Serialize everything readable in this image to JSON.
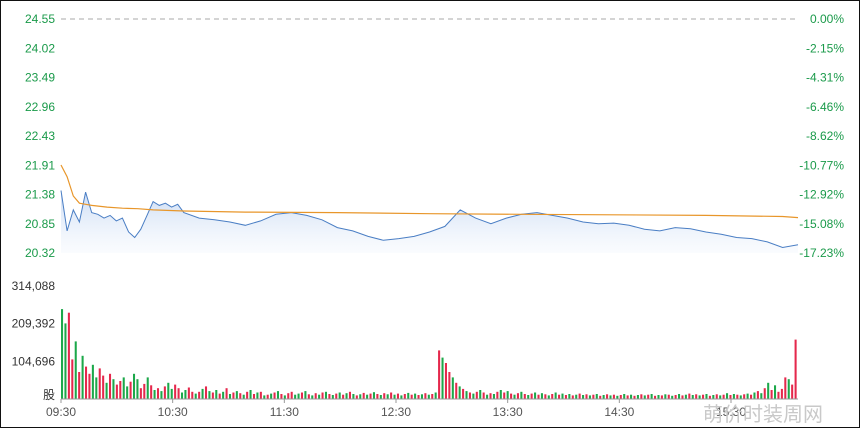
{
  "chart_data": [
    {
      "type": "line",
      "ylim": [
        20.32,
        24.55
      ],
      "y_ticks": [
        "24.55",
        "24.02",
        "23.49",
        "22.96",
        "22.43",
        "21.91",
        "21.38",
        "20.85",
        "20.32"
      ],
      "y2_ticks": [
        "0.00%",
        "-2.15%",
        "-4.31%",
        "-6.46%",
        "-8.62%",
        "-10.77%",
        "-12.92%",
        "-15.08%",
        "-17.23%"
      ],
      "reference_price": 24.55,
      "colors": {
        "price": "#4a7ec4",
        "avg": "#e8962a",
        "fill_top": "#b9cff0",
        "ref_line": "#aaaaaa",
        "axis_text": "#1a9a4a"
      },
      "series": [
        {
          "role": "price",
          "x": [
            0,
            2,
            4,
            6,
            8,
            10,
            12,
            14,
            16,
            18,
            20,
            22,
            24,
            26,
            28,
            30,
            32,
            34,
            36,
            38,
            40,
            45,
            50,
            55,
            60,
            65,
            70,
            75,
            80,
            85,
            90,
            95,
            100,
            105,
            110,
            115,
            120,
            125,
            130,
            135,
            140,
            145,
            150,
            155,
            160,
            165,
            170,
            175,
            180,
            185,
            190,
            195,
            200,
            205,
            210,
            215,
            220,
            225,
            230,
            235,
            240
          ],
          "y": [
            21.45,
            20.72,
            21.1,
            20.88,
            21.42,
            21.05,
            21.02,
            20.95,
            21.0,
            20.9,
            20.95,
            20.7,
            20.6,
            20.75,
            21.0,
            21.25,
            21.18,
            21.22,
            21.15,
            21.2,
            21.05,
            20.95,
            20.92,
            20.88,
            20.82,
            20.9,
            21.02,
            21.05,
            21.0,
            20.92,
            20.78,
            20.72,
            20.62,
            20.55,
            20.58,
            20.62,
            20.7,
            20.8,
            21.1,
            20.95,
            20.85,
            20.95,
            21.02,
            21.05,
            21.0,
            20.95,
            20.88,
            20.85,
            20.86,
            20.82,
            20.75,
            20.72,
            20.78,
            20.76,
            20.7,
            20.66,
            20.6,
            20.58,
            20.52,
            20.42,
            20.47
          ]
        },
        {
          "role": "avg",
          "x": [
            0,
            2,
            4,
            6,
            8,
            10,
            15,
            20,
            25,
            30,
            40,
            60,
            90,
            120,
            150,
            180,
            210,
            235,
            240
          ],
          "y": [
            21.91,
            21.7,
            21.35,
            21.22,
            21.2,
            21.18,
            21.15,
            21.13,
            21.12,
            21.1,
            21.08,
            21.06,
            21.05,
            21.03,
            21.02,
            21.01,
            21.0,
            20.98,
            20.96
          ]
        }
      ]
    },
    {
      "type": "bar",
      "y_ticks": [
        "314,088",
        "209,392",
        "104,696",
        "股"
      ],
      "ylim": [
        0,
        314088
      ],
      "colors": {
        "up": "#e5284c",
        "down": "#1ca84a"
      },
      "bars": [
        [
          250000,
          "down"
        ],
        [
          210000,
          "down"
        ],
        [
          240000,
          "up"
        ],
        [
          110000,
          "up"
        ],
        [
          160000,
          "down"
        ],
        [
          75000,
          "up"
        ],
        [
          120000,
          "down"
        ],
        [
          90000,
          "up"
        ],
        [
          70000,
          "up"
        ],
        [
          95000,
          "down"
        ],
        [
          60000,
          "down"
        ],
        [
          85000,
          "up"
        ],
        [
          65000,
          "up"
        ],
        [
          45000,
          "down"
        ],
        [
          70000,
          "up"
        ],
        [
          55000,
          "down"
        ],
        [
          40000,
          "up"
        ],
        [
          50000,
          "up"
        ],
        [
          60000,
          "down"
        ],
        [
          35000,
          "down"
        ],
        [
          48000,
          "up"
        ],
        [
          70000,
          "down"
        ],
        [
          55000,
          "down"
        ],
        [
          30000,
          "up"
        ],
        [
          42000,
          "up"
        ],
        [
          60000,
          "down"
        ],
        [
          38000,
          "up"
        ],
        [
          25000,
          "down"
        ],
        [
          30000,
          "up"
        ],
        [
          22000,
          "down"
        ],
        [
          35000,
          "up"
        ],
        [
          45000,
          "down"
        ],
        [
          28000,
          "down"
        ],
        [
          40000,
          "up"
        ],
        [
          30000,
          "up"
        ],
        [
          18000,
          "down"
        ],
        [
          25000,
          "down"
        ],
        [
          32000,
          "up"
        ],
        [
          20000,
          "up"
        ],
        [
          15000,
          "down"
        ],
        [
          20000,
          "up"
        ],
        [
          28000,
          "down"
        ],
        [
          35000,
          "up"
        ],
        [
          22000,
          "down"
        ],
        [
          18000,
          "up"
        ],
        [
          25000,
          "down"
        ],
        [
          15000,
          "up"
        ],
        [
          20000,
          "down"
        ],
        [
          30000,
          "up"
        ],
        [
          14000,
          "down"
        ],
        [
          18000,
          "up"
        ],
        [
          22000,
          "down"
        ],
        [
          16000,
          "up"
        ],
        [
          12000,
          "down"
        ],
        [
          20000,
          "up"
        ],
        [
          25000,
          "down"
        ],
        [
          14000,
          "up"
        ],
        [
          18000,
          "down"
        ],
        [
          20000,
          "up"
        ],
        [
          10000,
          "down"
        ],
        [
          12000,
          "up"
        ],
        [
          15000,
          "down"
        ],
        [
          18000,
          "up"
        ],
        [
          22000,
          "down"
        ],
        [
          14000,
          "up"
        ],
        [
          10000,
          "down"
        ],
        [
          16000,
          "up"
        ],
        [
          20000,
          "up"
        ],
        [
          12000,
          "down"
        ],
        [
          15000,
          "down"
        ],
        [
          18000,
          "up"
        ],
        [
          22000,
          "down"
        ],
        [
          13000,
          "up"
        ],
        [
          10000,
          "down"
        ],
        [
          16000,
          "up"
        ],
        [
          12000,
          "down"
        ],
        [
          18000,
          "up"
        ],
        [
          20000,
          "down"
        ],
        [
          14000,
          "up"
        ],
        [
          11000,
          "down"
        ],
        [
          15000,
          "up"
        ],
        [
          18000,
          "down"
        ],
        [
          12000,
          "up"
        ],
        [
          16000,
          "down"
        ],
        [
          20000,
          "up"
        ],
        [
          14000,
          "down"
        ],
        [
          10000,
          "up"
        ],
        [
          13000,
          "down"
        ],
        [
          17000,
          "up"
        ],
        [
          12000,
          "down"
        ],
        [
          15000,
          "up"
        ],
        [
          19000,
          "down"
        ],
        [
          14000,
          "up"
        ],
        [
          11000,
          "down"
        ],
        [
          16000,
          "up"
        ],
        [
          13000,
          "down"
        ],
        [
          18000,
          "up"
        ],
        [
          12000,
          "down"
        ],
        [
          15000,
          "up"
        ],
        [
          10000,
          "down"
        ],
        [
          14000,
          "up"
        ],
        [
          17000,
          "down"
        ],
        [
          12000,
          "up"
        ],
        [
          15000,
          "down"
        ],
        [
          11000,
          "up"
        ],
        [
          13000,
          "down"
        ],
        [
          16000,
          "up"
        ],
        [
          12000,
          "down"
        ],
        [
          14000,
          "up"
        ],
        [
          18000,
          "down"
        ],
        [
          135000,
          "up"
        ],
        [
          115000,
          "down"
        ],
        [
          100000,
          "up"
        ],
        [
          75000,
          "up"
        ],
        [
          60000,
          "down"
        ],
        [
          45000,
          "up"
        ],
        [
          35000,
          "down"
        ],
        [
          28000,
          "up"
        ],
        [
          22000,
          "down"
        ],
        [
          18000,
          "up"
        ],
        [
          15000,
          "down"
        ],
        [
          20000,
          "up"
        ],
        [
          25000,
          "down"
        ],
        [
          18000,
          "up"
        ],
        [
          12000,
          "down"
        ],
        [
          16000,
          "up"
        ],
        [
          14000,
          "down"
        ],
        [
          20000,
          "up"
        ],
        [
          25000,
          "down"
        ],
        [
          18000,
          "up"
        ],
        [
          22000,
          "down"
        ],
        [
          15000,
          "up"
        ],
        [
          12000,
          "down"
        ],
        [
          16000,
          "up"
        ],
        [
          20000,
          "down"
        ],
        [
          14000,
          "up"
        ],
        [
          11000,
          "down"
        ],
        [
          15000,
          "up"
        ],
        [
          18000,
          "down"
        ],
        [
          12000,
          "up"
        ],
        [
          16000,
          "down"
        ],
        [
          13000,
          "up"
        ],
        [
          10000,
          "down"
        ],
        [
          14000,
          "up"
        ],
        [
          18000,
          "down"
        ],
        [
          12000,
          "up"
        ],
        [
          15000,
          "down"
        ],
        [
          11000,
          "up"
        ],
        [
          14000,
          "down"
        ],
        [
          10000,
          "up"
        ],
        [
          12000,
          "down"
        ],
        [
          15000,
          "up"
        ],
        [
          11000,
          "down"
        ],
        [
          13000,
          "up"
        ],
        [
          10000,
          "down"
        ],
        [
          12000,
          "up"
        ],
        [
          14000,
          "down"
        ],
        [
          9000,
          "up"
        ],
        [
          11000,
          "down"
        ],
        [
          13000,
          "up"
        ],
        [
          10000,
          "down"
        ],
        [
          12000,
          "up"
        ],
        [
          9000,
          "down"
        ],
        [
          11000,
          "up"
        ],
        [
          14000,
          "down"
        ],
        [
          10000,
          "up"
        ],
        [
          12000,
          "down"
        ],
        [
          9000,
          "up"
        ],
        [
          11000,
          "down"
        ],
        [
          13000,
          "up"
        ],
        [
          10000,
          "down"
        ],
        [
          12000,
          "up"
        ],
        [
          14000,
          "down"
        ],
        [
          9000,
          "up"
        ],
        [
          11000,
          "down"
        ],
        [
          10000,
          "up"
        ],
        [
          13000,
          "down"
        ],
        [
          12000,
          "up"
        ],
        [
          9000,
          "down"
        ],
        [
          11000,
          "up"
        ],
        [
          14000,
          "down"
        ],
        [
          10000,
          "up"
        ],
        [
          12000,
          "down"
        ],
        [
          15000,
          "up"
        ],
        [
          11000,
          "down"
        ],
        [
          13000,
          "up"
        ],
        [
          10000,
          "down"
        ],
        [
          12000,
          "up"
        ],
        [
          14000,
          "down"
        ],
        [
          9000,
          "up"
        ],
        [
          11000,
          "down"
        ],
        [
          13000,
          "up"
        ],
        [
          10000,
          "down"
        ],
        [
          12000,
          "up"
        ],
        [
          16000,
          "down"
        ],
        [
          11000,
          "up"
        ],
        [
          14000,
          "down"
        ],
        [
          12000,
          "up"
        ],
        [
          10000,
          "down"
        ],
        [
          13000,
          "up"
        ],
        [
          15000,
          "down"
        ],
        [
          12000,
          "up"
        ],
        [
          18000,
          "down"
        ],
        [
          22000,
          "up"
        ],
        [
          16000,
          "down"
        ],
        [
          30000,
          "up"
        ],
        [
          45000,
          "down"
        ],
        [
          25000,
          "up"
        ],
        [
          38000,
          "down"
        ],
        [
          20000,
          "up"
        ],
        [
          28000,
          "up"
        ],
        [
          60000,
          "up"
        ],
        [
          55000,
          "down"
        ],
        [
          40000,
          "up"
        ],
        [
          165000,
          "up"
        ]
      ]
    }
  ],
  "x_axis": {
    "labels": [
      "09:30",
      "10:30",
      "11:30",
      "12:30",
      "13:30",
      "14:30",
      "15:30"
    ]
  },
  "watermark": "萌价时装周网"
}
